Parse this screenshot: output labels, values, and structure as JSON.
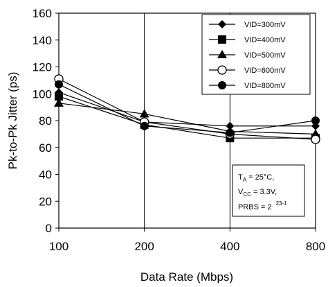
{
  "chart_data": {
    "type": "line",
    "title": "",
    "xlabel": "Data Rate (Mbps)",
    "ylabel": "Pk-to-Pk Jitter (ps)",
    "categories": [
      "100",
      "200",
      "400",
      "800"
    ],
    "ylim": [
      0,
      160
    ],
    "yticks": [
      "0",
      "20",
      "40",
      "60",
      "80",
      "100",
      "120",
      "140",
      "160"
    ],
    "grid": "vertical",
    "legend_position": "top-right",
    "series": [
      {
        "name": "VID=300mV",
        "marker": "diamond-filled",
        "values": [
          101,
          79,
          76,
          76
        ]
      },
      {
        "name": "VID=400mV",
        "marker": "square-filled",
        "values": [
          98,
          77,
          67,
          67
        ]
      },
      {
        "name": "VID=500mV",
        "marker": "triangle-filled",
        "values": [
          93,
          85,
          72,
          70
        ]
      },
      {
        "name": "VID=600mV",
        "marker": "circle-open",
        "values": [
          111,
          79,
          70,
          66
        ]
      },
      {
        "name": "VID=800mV",
        "marker": "circle-filled",
        "values": [
          107,
          76,
          71,
          80
        ]
      }
    ],
    "annotation": {
      "line1": "T",
      "line1_sub": "A",
      "line1_rest": " = 25°C,",
      "line2": "V",
      "line2_sub": "CC",
      "line2_rest": " = 3.3V,",
      "line3": "PRBS = 2",
      "line3_sup": "23-1"
    }
  }
}
